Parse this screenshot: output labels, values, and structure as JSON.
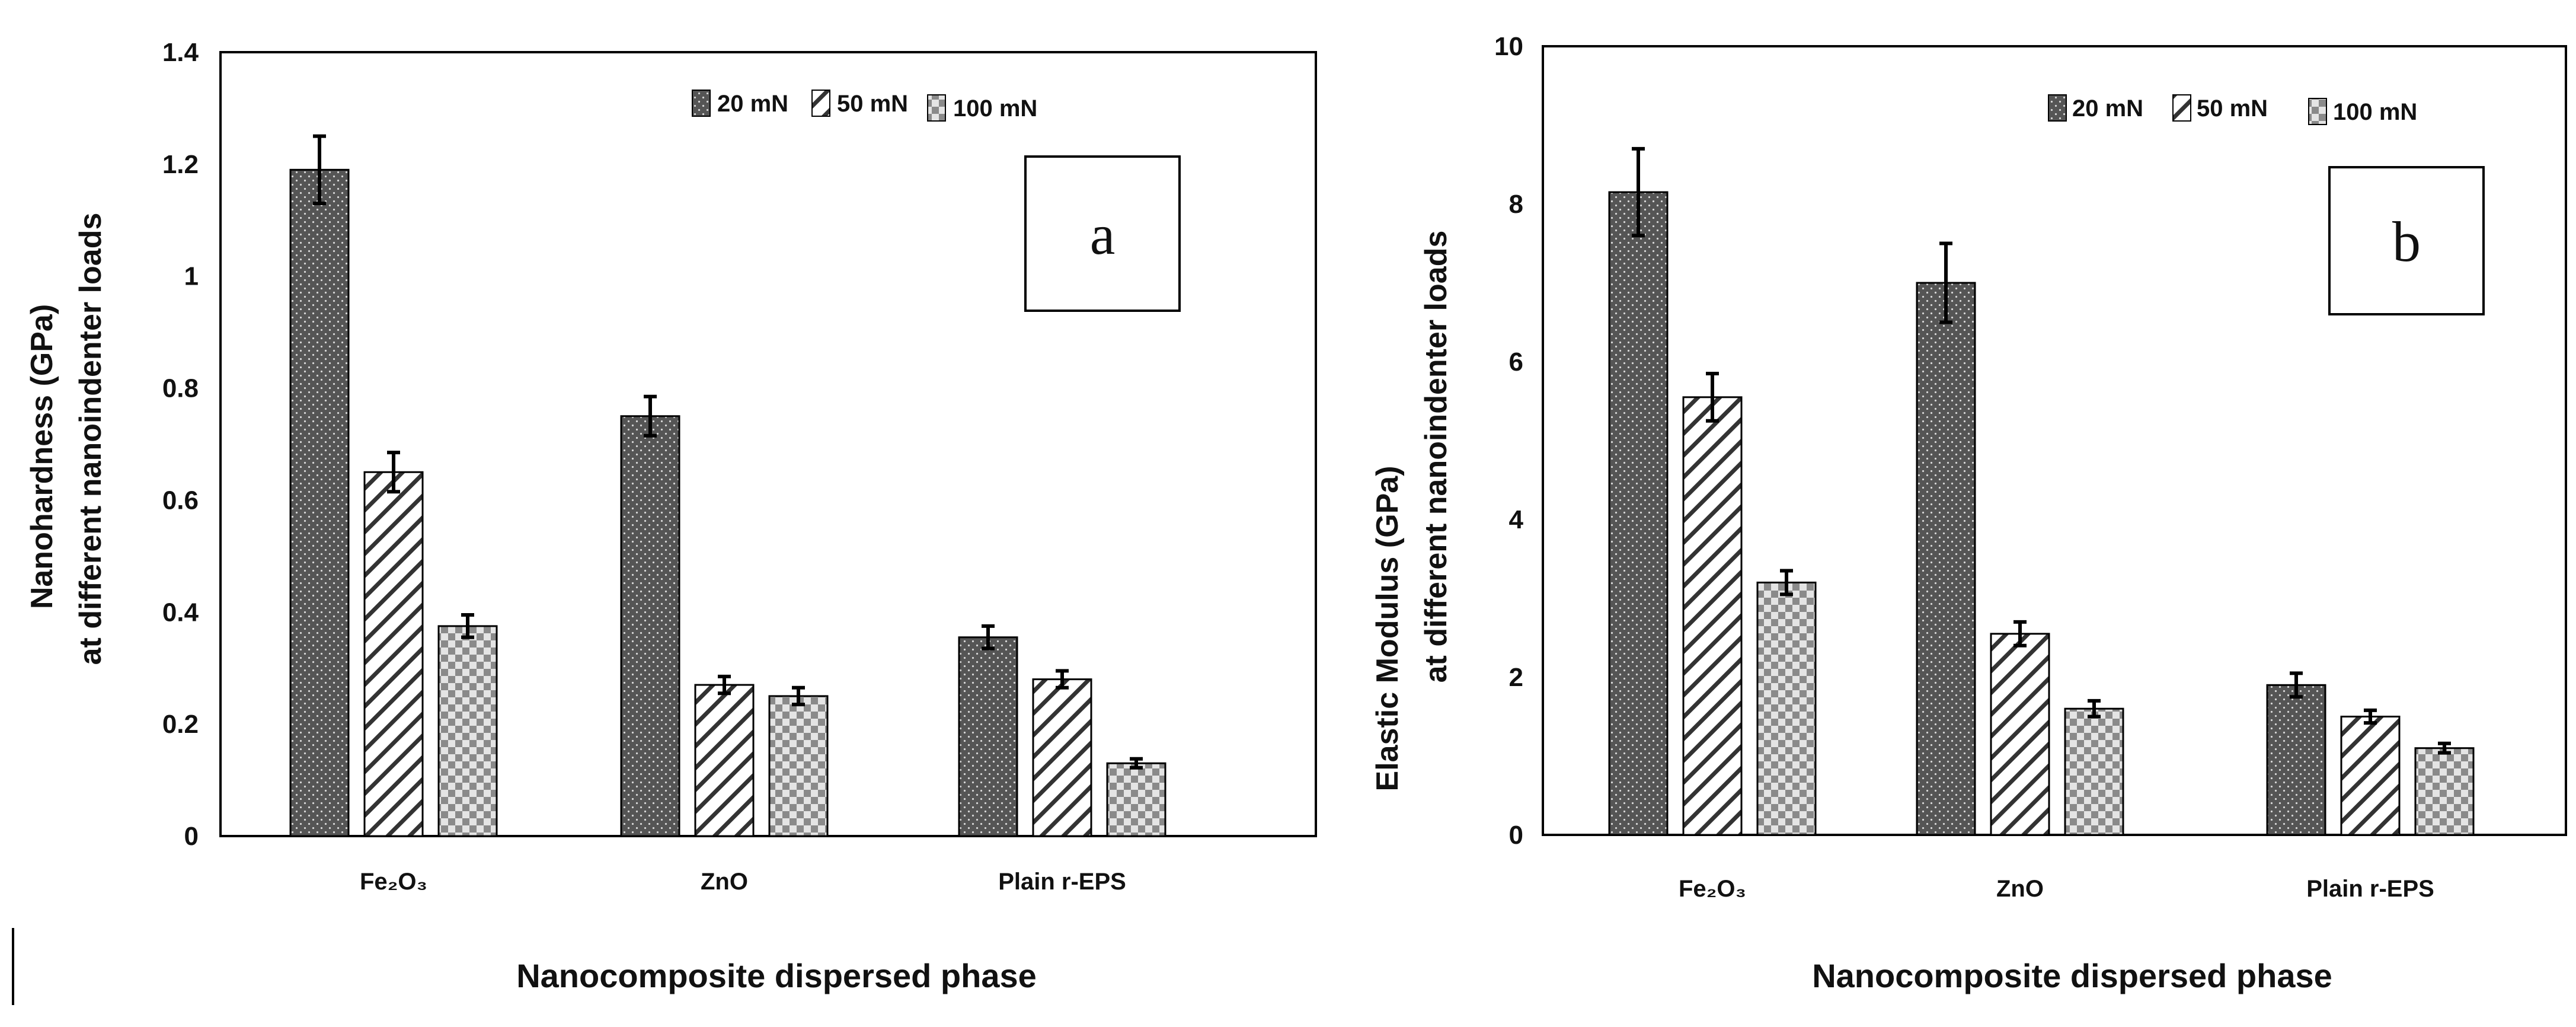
{
  "chart_data": [
    {
      "type": "bar",
      "panel_label": "a",
      "categories": [
        "Fe₂O₃",
        "ZnO",
        "Plain r-EPS"
      ],
      "series": [
        {
          "name": "20 mN",
          "values": [
            1.19,
            0.75,
            0.355
          ],
          "errors": [
            0.06,
            0.035,
            0.02
          ]
        },
        {
          "name": "50 mN",
          "values": [
            0.65,
            0.27,
            0.28
          ],
          "errors": [
            0.035,
            0.015,
            0.015
          ]
        },
        {
          "name": "100 mN",
          "values": [
            0.375,
            0.25,
            0.13
          ],
          "errors": [
            0.02,
            0.015,
            0.008
          ]
        }
      ],
      "ylabel_line1": "Nanohardness (GPa)",
      "ylabel_line2": "at different nanoindenter loads",
      "xlabel": "Nanocomposite dispersed phase",
      "ylim": [
        0,
        1.4
      ],
      "yticks": [
        "0",
        "0.2",
        "0.4",
        "0.6",
        "0.8",
        "1",
        "1.2",
        "1.4"
      ],
      "legend_position": "top-right"
    },
    {
      "type": "bar",
      "panel_label": "b",
      "categories": [
        "Fe₂O₃",
        "ZnO",
        "Plain r-EPS"
      ],
      "series": [
        {
          "name": "20 mN",
          "values": [
            8.15,
            7.0,
            1.9
          ],
          "errors": [
            0.55,
            0.5,
            0.15
          ]
        },
        {
          "name": "50 mN",
          "values": [
            5.55,
            2.55,
            1.5
          ],
          "errors": [
            0.3,
            0.15,
            0.08
          ]
        },
        {
          "name": "100 mN",
          "values": [
            3.2,
            1.6,
            1.1
          ],
          "errors": [
            0.15,
            0.1,
            0.06
          ]
        }
      ],
      "ylabel_line1": "Elastic Modulus (GPa)",
      "ylabel_line2": "at different nanoindenter  loads",
      "xlabel": "Nanocomposite dispersed phase",
      "ylim": [
        0,
        10
      ],
      "yticks": [
        "0",
        "2",
        "4",
        "6",
        "8",
        "10"
      ],
      "legend_position": "top-right"
    }
  ]
}
